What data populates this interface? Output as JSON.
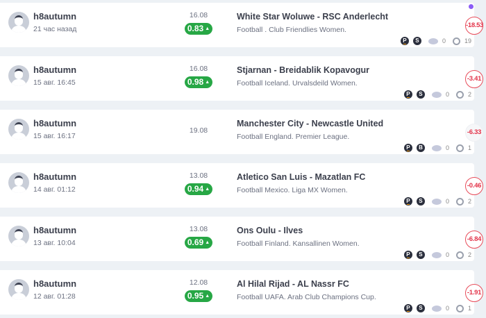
{
  "colors": {
    "odds_bg": "#27a745",
    "loss": "#e3344a",
    "dot": "#8b5cf6"
  },
  "items": [
    {
      "user": "h8autumn",
      "time": "21 час назад",
      "date": "16.08",
      "odds": "0.83",
      "match": "White Star Woluwe - RSC Anderlecht",
      "league": "Football . Club Friendlies Women.",
      "tags": [
        "P",
        "S"
      ],
      "comments": "0",
      "views": "19",
      "result": "-18.53",
      "unread": true,
      "neutral": false
    },
    {
      "user": "h8autumn",
      "time": "15 авг. 16:45",
      "date": "16.08",
      "odds": "0.98",
      "match": "Stjarnan - Breidablik Kopavogur",
      "league": "Football Iceland. Urvalsdeild Women.",
      "tags": [
        "P",
        "S"
      ],
      "comments": "0",
      "views": "2",
      "result": "-3.41",
      "neutral": false
    },
    {
      "user": "h8autumn",
      "time": "15 авг. 16:17",
      "date": "19.08",
      "odds": null,
      "match": "Manchester City - Newcastle United",
      "league": "Football England. Premier League.",
      "tags": [
        "P",
        "B"
      ],
      "comments": "0",
      "views": "1",
      "result": "-6.33",
      "neutral": true
    },
    {
      "user": "h8autumn",
      "time": "14 авг. 01:12",
      "date": "13.08",
      "odds": "0.94",
      "match": "Atletico San Luis - Mazatlan FC",
      "league": "Football Mexico. Liga MX Women.",
      "tags": [
        "P",
        "S"
      ],
      "comments": "0",
      "views": "2",
      "result": "-0.46",
      "neutral": false
    },
    {
      "user": "h8autumn",
      "time": "13 авг. 10:04",
      "date": "13.08",
      "odds": "0.69",
      "match": "Ons Oulu - Ilves",
      "league": "Football Finland. Kansallinen Women.",
      "tags": [
        "P",
        "S"
      ],
      "comments": "0",
      "views": "2",
      "result": "-6.84",
      "neutral": false
    },
    {
      "user": "h8autumn",
      "time": "12 авг. 01:28",
      "date": "12.08",
      "odds": "0.95",
      "match": "Al Hilal Rijad - AL Nassr FC",
      "league": "Football UAFA. Arab Club Champions Cup.",
      "tags": [
        "P",
        "S"
      ],
      "comments": "0",
      "views": "1",
      "result": "-1.91",
      "neutral": false
    }
  ]
}
